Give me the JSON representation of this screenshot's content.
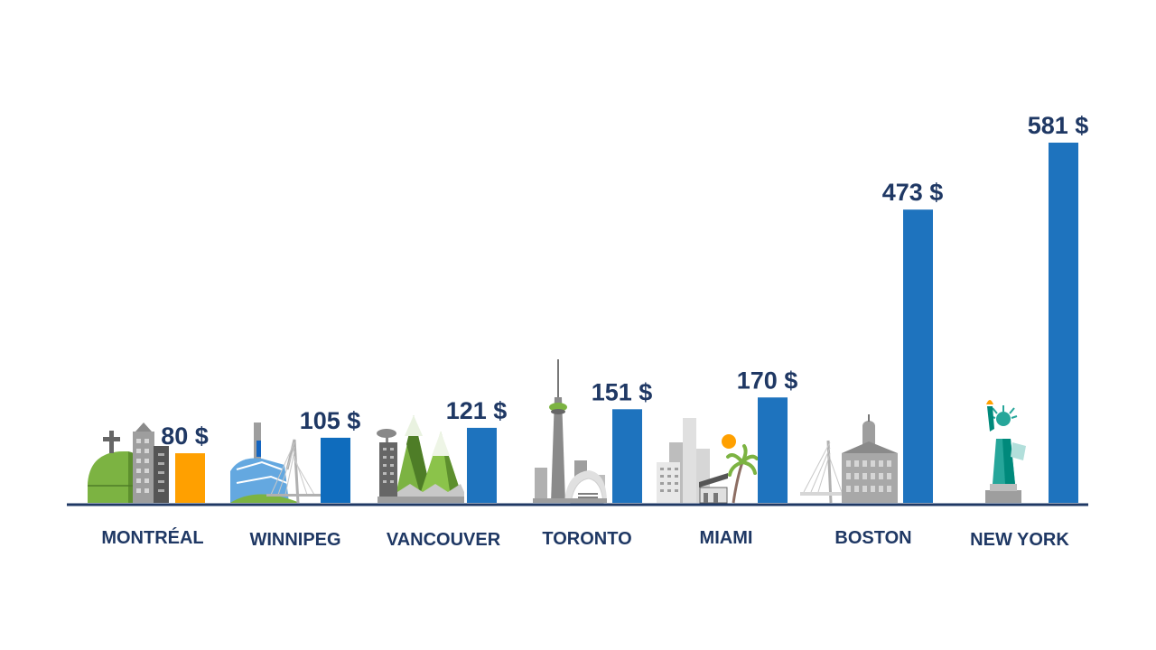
{
  "chart_data": {
    "type": "bar",
    "categories": [
      "MONTRÉAL",
      "WINNIPEG",
      "VANCOUVER",
      "TORONTO",
      "MIAMI",
      "BOSTON",
      "NEW YORK"
    ],
    "values": [
      80,
      105,
      121,
      151,
      170,
      473,
      581
    ],
    "value_labels": [
      "80 $",
      "105 $",
      "121 $",
      "151 $",
      "170 $",
      "473 $",
      "581 $"
    ],
    "ylim": [
      0,
      581
    ],
    "grid": false,
    "legend": "none",
    "colors": {
      "highlight": "#ffa000",
      "bar": "#1e73be",
      "bar_winnipeg": "#0f6cbd",
      "text": "#1f3864",
      "axis": "#1f3864"
    },
    "icons": [
      "montreal-skyline-icon",
      "winnipeg-skyline-icon",
      "vancouver-skyline-icon",
      "toronto-skyline-icon",
      "miami-skyline-icon",
      "boston-skyline-icon",
      "new-york-skyline-icon"
    ]
  }
}
